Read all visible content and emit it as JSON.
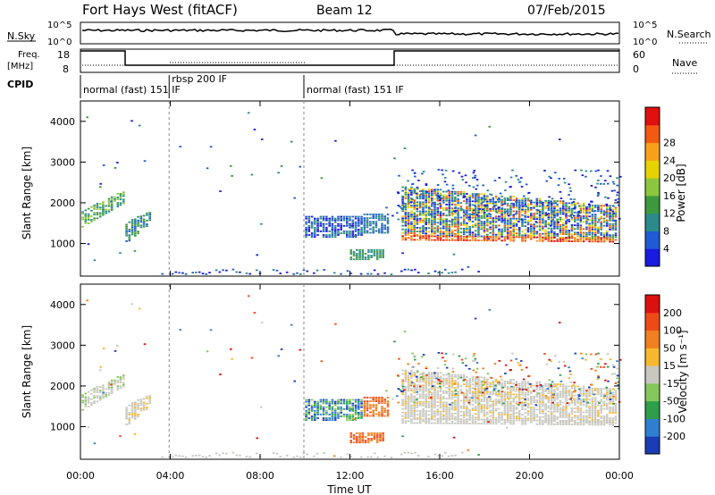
{
  "header": {
    "title": "Fort Hays West (fitACF)",
    "beam": "Beam 12",
    "date": "07/Feb/2015"
  },
  "top_panels": {
    "nsky_label": "N.Sky",
    "nsearch_label": "N.Search",
    "noise_tick_top": "10^5",
    "noise_tick_bottom": "10^0",
    "freq_label_line1": "Freq.",
    "freq_label_line2": "[MHz]",
    "freq_ticks": [
      "18",
      "8"
    ],
    "nave_label": "Nave",
    "nave_ticks": [
      "60",
      "0"
    ],
    "cpid_label": "CPID",
    "cpid_segments": [
      {
        "start": 0.0,
        "end": 3.95,
        "label": "normal (fast) 151 IF"
      },
      {
        "start": 3.95,
        "end": 9.95,
        "label": "rbsp 200 IF"
      },
      {
        "start": 9.95,
        "end": 24.0,
        "label": "normal (fast) 151 IF"
      }
    ]
  },
  "chart_data": [
    {
      "type": "heatmap",
      "name": "power",
      "ylabel": "Slant Range [km]",
      "xlim": [
        0,
        24
      ],
      "ylim": [
        200,
        4500
      ],
      "yticks": [
        "1000",
        "2000",
        "3000",
        "4000"
      ],
      "colorbar_label": "Power [dB]",
      "colorbar_ticks": [
        "4",
        "8",
        "12",
        "16",
        "20",
        "24",
        "28"
      ],
      "colorbar_colors": [
        "#1a1ae0",
        "#1f5bd1",
        "#2b8a8a",
        "#3c9a3c",
        "#8cc63f",
        "#e6d200",
        "#f7a11a",
        "#f25a12",
        "#e01010"
      ]
    },
    {
      "type": "heatmap",
      "name": "velocity",
      "ylabel": "Slant Range [km]",
      "xlabel": "Time UT",
      "xlim": [
        0,
        24
      ],
      "ylim": [
        200,
        4500
      ],
      "yticks": [
        "1000",
        "2000",
        "3000",
        "4000"
      ],
      "xticks": [
        "00:00",
        "04:00",
        "08:00",
        "12:00",
        "16:00",
        "20:00",
        "00:00"
      ],
      "colorbar_label": "Velocity [m s⁻¹]",
      "colorbar_ticks": [
        "200",
        "100",
        "50",
        "15",
        "-15",
        "-50",
        "-100",
        "-200"
      ],
      "colorbar_colors": [
        "#1a3cb4",
        "#2f7fd1",
        "#2e9e4a",
        "#86c65a",
        "#c8c8c0",
        "#f5b830",
        "#f08020",
        "#ee4a18",
        "#dd1010"
      ]
    }
  ]
}
